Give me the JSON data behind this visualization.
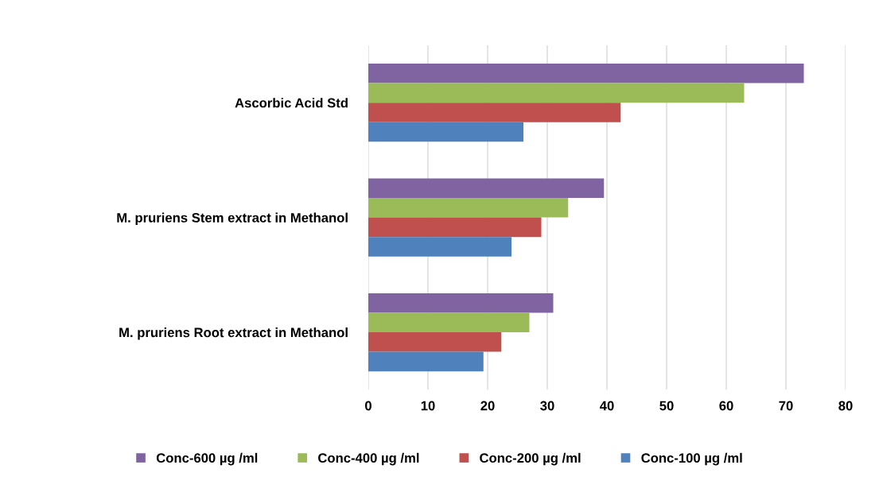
{
  "chart_data": {
    "type": "bar",
    "orientation": "horizontal",
    "categories": [
      "Ascorbic Acid Std",
      "M. pruriens Stem extract in Methanol",
      "M. pruriens Root extract in Methanol"
    ],
    "series": [
      {
        "name": "Conc-600 µg /ml",
        "color": "#8064a2",
        "values": [
          73,
          39.5,
          31
        ]
      },
      {
        "name": "Conc-400 µg /ml",
        "color": "#9bbb59",
        "values": [
          63,
          33.5,
          27
        ]
      },
      {
        "name": "Conc-200 µg /ml",
        "color": "#c0504d",
        "values": [
          42.3,
          29,
          22.3
        ]
      },
      {
        "name": "Conc-100 µg /ml",
        "color": "#4f81bd",
        "values": [
          26,
          24,
          19.3
        ]
      }
    ],
    "xlim": [
      0,
      80
    ],
    "xticks": [
      0,
      10,
      20,
      30,
      40,
      50,
      60,
      70,
      80
    ],
    "grid": "x",
    "legend": "bottom"
  }
}
